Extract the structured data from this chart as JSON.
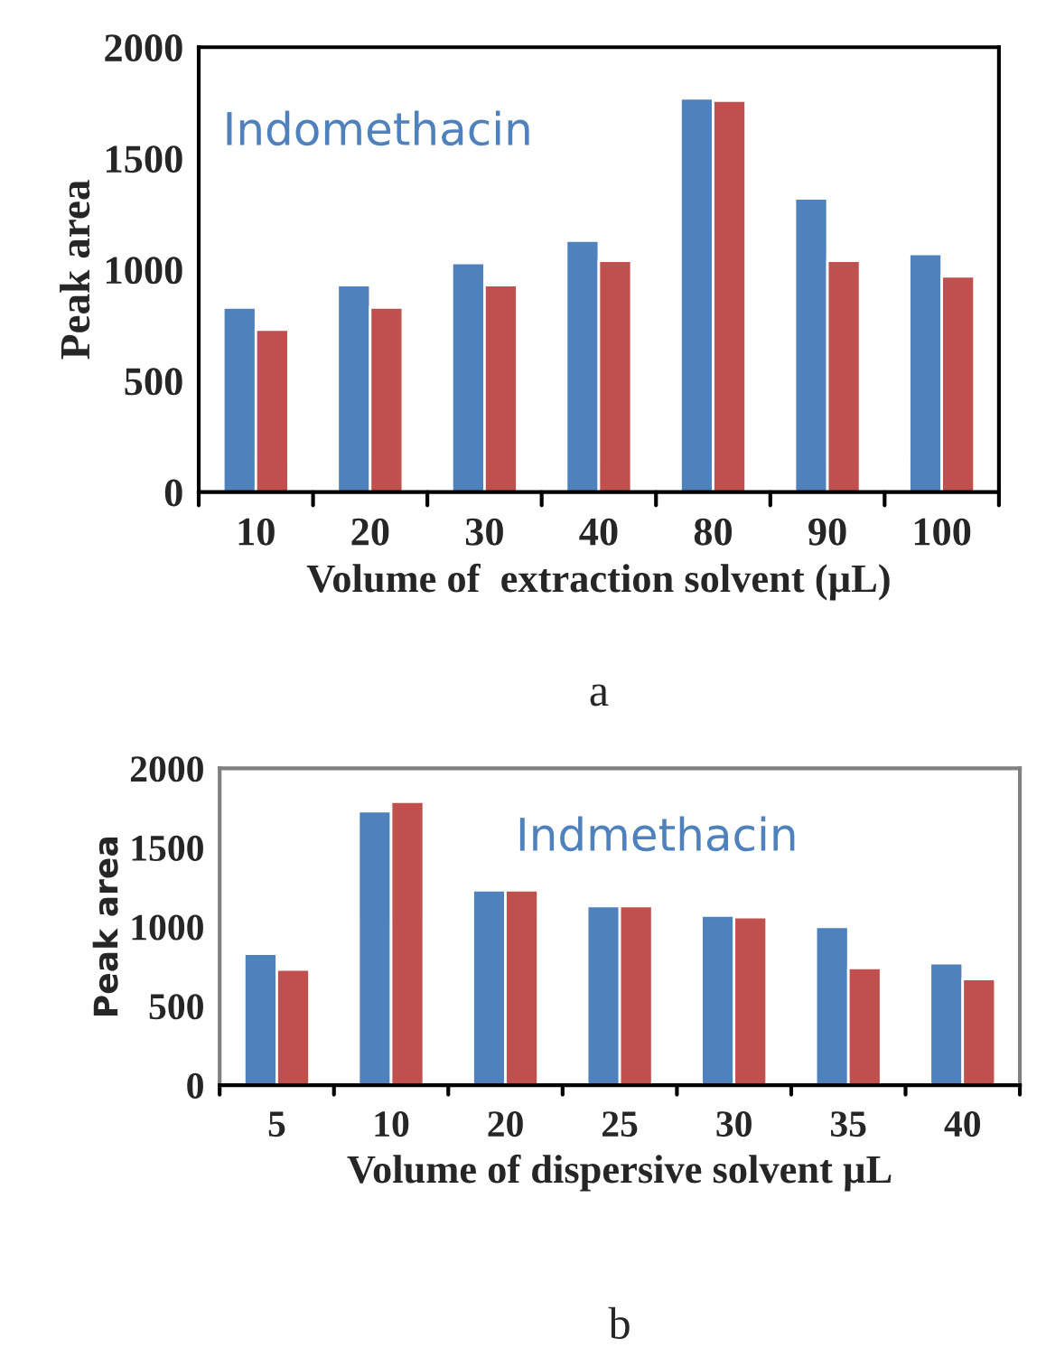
{
  "chart_data": [
    {
      "type": "bar",
      "xlabel": "Volume of  extraction solvent (µL)",
      "ylabel": "Peak area",
      "categories": [
        "10",
        "20",
        "30",
        "40",
        "80",
        "90",
        "100"
      ],
      "series": [
        {
          "color": "#4f81bd",
          "values": [
            830,
            930,
            1030,
            1130,
            1770,
            1320,
            1070
          ]
        },
        {
          "color": "#c0504d",
          "values": [
            730,
            830,
            930,
            1040,
            1760,
            1040,
            970
          ]
        }
      ],
      "ylim": [
        0,
        2000
      ],
      "yticks": [
        0,
        500,
        1000,
        1500,
        2000
      ],
      "grid": false,
      "legend": false,
      "annotations": [
        "Indomethacin",
        "a"
      ]
    },
    {
      "type": "bar",
      "xlabel": "Volume of dispersive solvent µL",
      "ylabel": "Peak area",
      "categories": [
        "5",
        "10",
        "20",
        "25",
        "30",
        "35",
        "40"
      ],
      "series": [
        {
          "color": "#4f81bd",
          "values": [
            830,
            1730,
            1230,
            1130,
            1070,
            1000,
            770
          ]
        },
        {
          "color": "#c0504d",
          "values": [
            730,
            1790,
            1230,
            1130,
            1060,
            740,
            670
          ]
        }
      ],
      "ylim": [
        0,
        2000
      ],
      "yticks": [
        0,
        500,
        1000,
        1500,
        2000
      ],
      "grid": false,
      "legend": false,
      "annotations": [
        "Indmethacin",
        "b"
      ]
    }
  ]
}
